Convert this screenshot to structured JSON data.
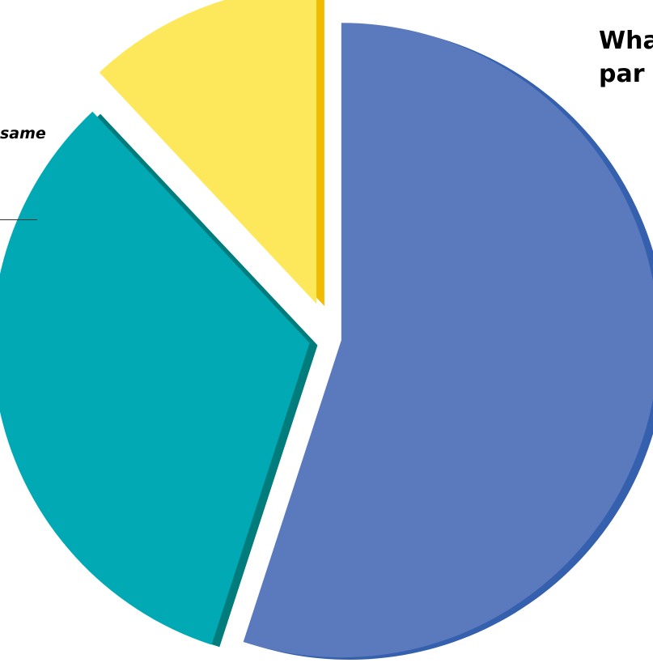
{
  "chart_data": {
    "type": "pie",
    "exploded": true,
    "title_lines": [
      "Wha",
      "par"
    ],
    "fragment_label": "same",
    "slices": [
      {
        "value": 55,
        "color": "#5b79bd",
        "edge_color": "#3560ad"
      },
      {
        "value": 33,
        "color": "#00a9b3",
        "edge_color": "#007c7c"
      },
      {
        "value": 12,
        "color": "#fde85c",
        "edge_color": "#f0bb00"
      }
    ]
  }
}
